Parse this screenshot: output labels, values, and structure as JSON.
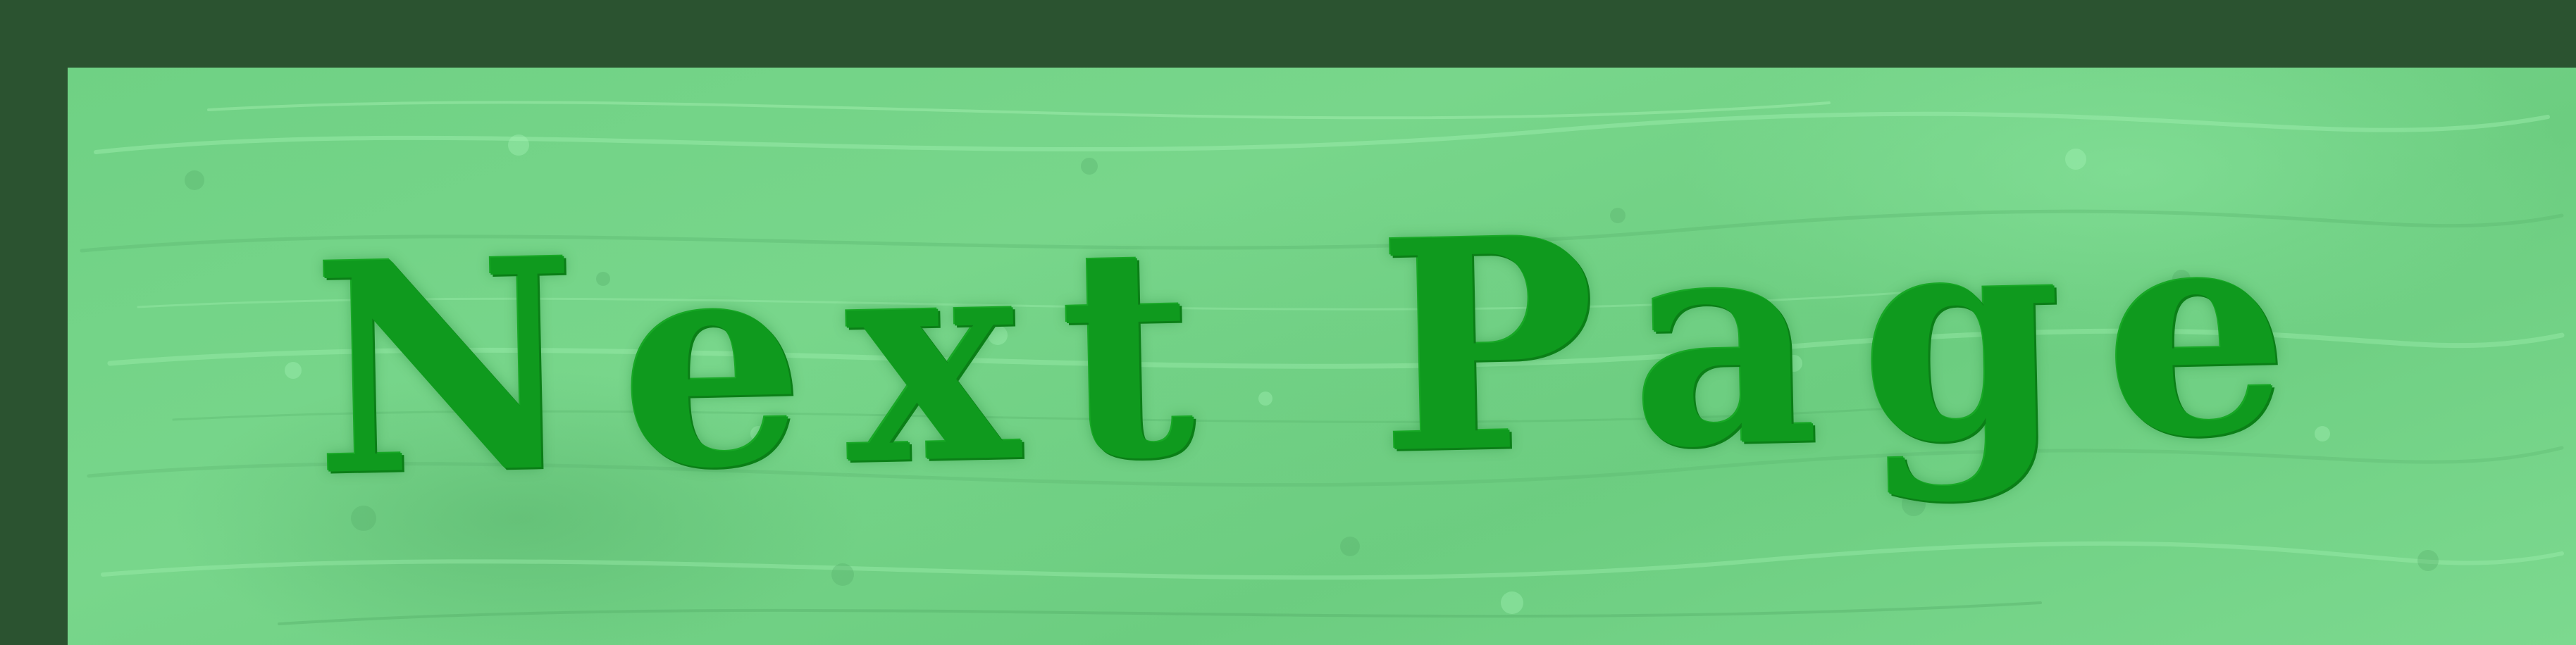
{
  "button": {
    "label": "Next Page"
  },
  "colors": {
    "border": "#2b5330",
    "panel": "#74d488",
    "text": "#0f9a1e"
  }
}
